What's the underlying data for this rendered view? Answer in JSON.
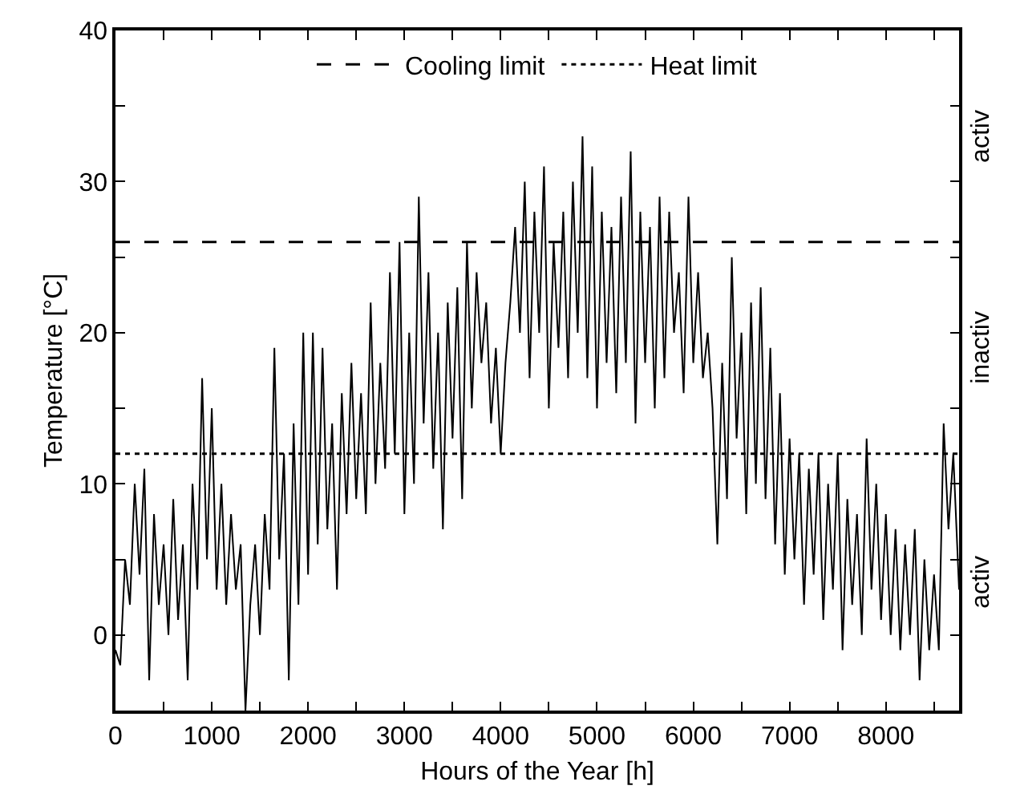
{
  "chart_data": {
    "type": "line",
    "xlabel": "Hours of the Year [h]",
    "ylabel": "Temperature [°C]",
    "xlim": [
      0,
      8760
    ],
    "ylim": [
      -5,
      40
    ],
    "xticks": [
      0,
      {
        "value": 500,
        "label": null
      },
      1000,
      {
        "value": 1500,
        "label": null
      },
      2000,
      {
        "value": 2500,
        "label": null
      },
      3000,
      {
        "value": 3500,
        "label": null
      },
      4000,
      {
        "value": 4500,
        "label": null
      },
      5000,
      {
        "value": 5500,
        "label": null
      },
      6000,
      {
        "value": 6500,
        "label": null
      },
      7000,
      {
        "value": 7500,
        "label": null
      },
      8000,
      {
        "value": 8500,
        "label": null
      }
    ],
    "yticks": [
      {
        "value": -5,
        "label": null
      },
      0,
      {
        "value": 5,
        "label": null
      },
      10,
      {
        "value": 15,
        "label": null
      },
      20,
      {
        "value": 25,
        "label": null
      },
      30,
      {
        "value": 35,
        "label": null
      },
      40
    ],
    "x": [
      0,
      50,
      100,
      150,
      200,
      250,
      300,
      350,
      400,
      450,
      500,
      550,
      600,
      650,
      700,
      750,
      800,
      850,
      900,
      950,
      1000,
      1050,
      1100,
      1150,
      1200,
      1250,
      1300,
      1350,
      1400,
      1450,
      1500,
      1550,
      1600,
      1650,
      1700,
      1750,
      1800,
      1850,
      1900,
      1950,
      2000,
      2050,
      2100,
      2150,
      2200,
      2250,
      2300,
      2350,
      2400,
      2450,
      2500,
      2550,
      2600,
      2650,
      2700,
      2750,
      2800,
      2850,
      2900,
      2950,
      3000,
      3050,
      3100,
      3150,
      3200,
      3250,
      3300,
      3350,
      3400,
      3450,
      3500,
      3550,
      3600,
      3650,
      3700,
      3750,
      3800,
      3850,
      3900,
      3950,
      4000,
      4050,
      4100,
      4150,
      4200,
      4250,
      4300,
      4350,
      4400,
      4450,
      4500,
      4550,
      4600,
      4650,
      4700,
      4750,
      4800,
      4850,
      4900,
      4950,
      5000,
      5050,
      5100,
      5150,
      5200,
      5250,
      5300,
      5350,
      5400,
      5450,
      5500,
      5550,
      5600,
      5650,
      5700,
      5750,
      5800,
      5850,
      5900,
      5950,
      6000,
      6050,
      6100,
      6150,
      6200,
      6250,
      6300,
      6350,
      6400,
      6450,
      6500,
      6550,
      6600,
      6650,
      6700,
      6750,
      6800,
      6850,
      6900,
      6950,
      7000,
      7050,
      7100,
      7150,
      7200,
      7250,
      7300,
      7350,
      7400,
      7450,
      7500,
      7550,
      7600,
      7650,
      7700,
      7750,
      7800,
      7850,
      7900,
      7950,
      8000,
      8050,
      8100,
      8150,
      8200,
      8250,
      8300,
      8350,
      8400,
      8450,
      8500,
      8550,
      8600,
      8650,
      8700,
      8760
    ],
    "series": [
      {
        "color": "#000000",
        "values": [
          -1,
          -2,
          5,
          2,
          10,
          4,
          11,
          -3,
          8,
          2,
          6,
          0,
          9,
          1,
          6,
          -3,
          10,
          3,
          17,
          5,
          15,
          3,
          10,
          2,
          8,
          3,
          6,
          -5,
          2,
          6,
          0,
          8,
          3,
          19,
          5,
          12,
          -3,
          14,
          2,
          20,
          4,
          20,
          6,
          19,
          7,
          14,
          3,
          16,
          8,
          18,
          9,
          16,
          8,
          22,
          10,
          18,
          11,
          24,
          12,
          26,
          8,
          20,
          10,
          29,
          14,
          24,
          11,
          20,
          7,
          22,
          13,
          23,
          9,
          26,
          15,
          24,
          18,
          22,
          14,
          19,
          12,
          18,
          22,
          27,
          20,
          30,
          17,
          28,
          20,
          31,
          15,
          26,
          19,
          28,
          17,
          30,
          20,
          33,
          17,
          31,
          15,
          28,
          18,
          27,
          16,
          29,
          18,
          32,
          14,
          28,
          18,
          27,
          15,
          29,
          17,
          28,
          20,
          24,
          16,
          29,
          18,
          24,
          17,
          20,
          15,
          6,
          18,
          9,
          25,
          13,
          20,
          8,
          22,
          10,
          23,
          9,
          19,
          6,
          16,
          4,
          13,
          5,
          12,
          2,
          11,
          4,
          12,
          1,
          10,
          3,
          12,
          -1,
          9,
          2,
          8,
          0,
          13,
          3,
          10,
          1,
          8,
          0,
          7,
          -1,
          6,
          0,
          7,
          -3,
          5,
          -1,
          4,
          -1,
          14,
          7,
          12,
          3
        ]
      }
    ],
    "ref_lines": [
      {
        "axis": "y",
        "value": 26,
        "label": "Cooling limit",
        "color": "#000000",
        "line_style": "dashed"
      },
      {
        "axis": "y",
        "value": 12,
        "label": "Heat limit",
        "color": "#000000",
        "line_style": "dotted"
      }
    ],
    "annotations": [
      "activ",
      "inactiv",
      "activ"
    ],
    "legend": "top",
    "grid": false,
    "marker": "none",
    "line_style": "solid"
  }
}
